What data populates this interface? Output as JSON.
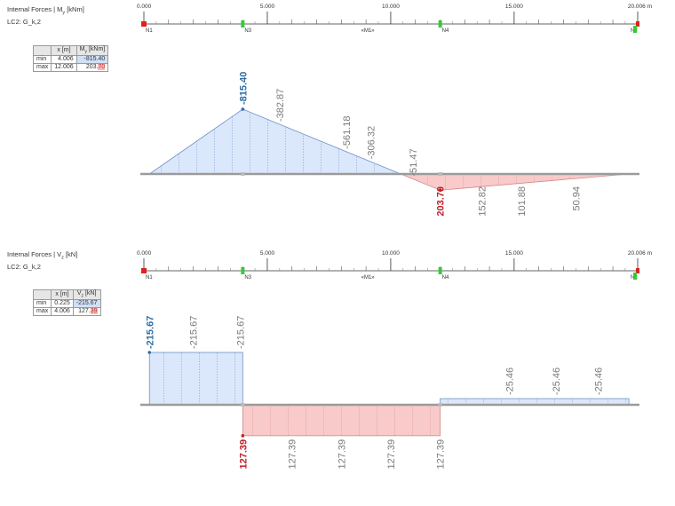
{
  "accent": {
    "negative_fill": "#dbe7fa",
    "negative_stroke": "#6f92c8",
    "positive_fill": "#f8caca",
    "positive_stroke": "#d48a8a",
    "baseline": "#9b9b9b",
    "label_gray": "#7a7a7a",
    "extreme_neg": "#2e6ea6",
    "extreme_pos": "#c0202a",
    "node_start": "#e02020",
    "node_support": "#33cc33"
  },
  "ruler": {
    "ticks": [
      "0.000",
      "5.000",
      "10.000",
      "15.000",
      "20.006 m"
    ],
    "nodes": [
      "N1",
      "N3",
      "«M1»",
      "N4",
      "N2"
    ]
  },
  "panels": [
    {
      "title_pre": "Internal Forces | M",
      "title_sub": "y",
      "title_post": " [kNm]",
      "lc": "LC2: G_k,2",
      "table": {
        "h_x": "x [m]",
        "h_v_pre": "M",
        "h_v_sub": "y",
        "h_v_post": " [kNm]",
        "min_label": "min",
        "min_x": "4.006",
        "min_v": "-815.40",
        "max_label": "max",
        "max_x": "12.006",
        "max_v_main": "203.",
        "max_v_hl": "70"
      }
    },
    {
      "title_pre": "Internal Forces | V",
      "title_sub": "z",
      "title_post": " [kN]",
      "lc": "LC2: G_k,2",
      "table": {
        "h_x": "x [m]",
        "h_v_pre": "V",
        "h_v_sub": "z",
        "h_v_post": " [kN]",
        "min_label": "min",
        "min_x": "0.225",
        "min_v": "-215.67",
        "max_label": "max",
        "max_x": "4.006",
        "max_v_main": "127.",
        "max_v_hl": "39"
      }
    }
  ],
  "chart_data": [
    {
      "type": "area",
      "title": "Internal Forces | My [kNm]",
      "xlabel": "x [m]",
      "ylabel": "My [kNm]",
      "xlim": [
        0,
        20.006
      ],
      "sign_convention": "negative plotted above axis",
      "series": [
        {
          "name": "My",
          "x": [
            0.225,
            4.006,
            12.006,
            19.65
          ],
          "y": [
            0,
            -815.4,
            203.7,
            0
          ]
        }
      ],
      "labels": [
        {
          "x": 4.006,
          "text": "-815.40",
          "kind": "extreme"
        },
        {
          "x": 5.5,
          "text": "-382.87"
        },
        {
          "x": 8.2,
          "text": "-561.18"
        },
        {
          "x": 9.2,
          "text": "-306.32"
        },
        {
          "x": 10.9,
          "text": "-51.47"
        },
        {
          "x": 12.006,
          "text": "203.70",
          "kind": "extreme"
        },
        {
          "x": 13.7,
          "text": "152.82"
        },
        {
          "x": 15.3,
          "text": "101.88"
        },
        {
          "x": 17.5,
          "text": "50.94"
        }
      ],
      "min": {
        "x": 4.006,
        "value": -815.4
      },
      "max": {
        "x": 12.006,
        "value": 203.7
      }
    },
    {
      "type": "area",
      "title": "Internal Forces | Vz [kN]",
      "xlabel": "x [m]",
      "ylabel": "Vz [kN]",
      "xlim": [
        0,
        20.006
      ],
      "sign_convention": "negative plotted above axis",
      "series": [
        {
          "name": "Vz",
          "segments": [
            {
              "x": [
                0.225,
                4.006
              ],
              "y": -215.67
            },
            {
              "x": 4.006,
              "x_end": 12.006,
              "y": 127.39
            },
            {
              "x": 12.006,
              "x_end": 19.65,
              "y": -25.46
            }
          ]
        }
      ],
      "labels": [
        {
          "x": 0.225,
          "text": "-215.67",
          "kind": "extreme"
        },
        {
          "x": 2.0,
          "text": "-215.67"
        },
        {
          "x": 3.9,
          "text": "-215.67"
        },
        {
          "x": 4.006,
          "text": "127.39",
          "kind": "extreme"
        },
        {
          "x": 6.0,
          "text": "127.39"
        },
        {
          "x": 8.0,
          "text": "127.39"
        },
        {
          "x": 10.0,
          "text": "127.39"
        },
        {
          "x": 12.0,
          "text": "127.39"
        },
        {
          "x": 14.8,
          "text": "-25.46"
        },
        {
          "x": 16.7,
          "text": "-25.46"
        },
        {
          "x": 18.4,
          "text": "-25.46"
        }
      ],
      "min": {
        "x": 0.225,
        "value": -215.67
      },
      "max": {
        "x": 4.006,
        "value": 127.39
      }
    }
  ]
}
